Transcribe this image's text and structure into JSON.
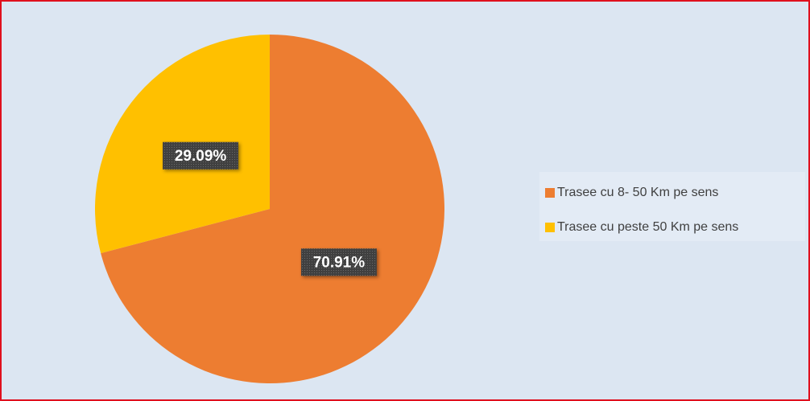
{
  "chart_data": {
    "type": "pie",
    "categories": [
      "Trasee cu 8- 50 Km pe sens",
      "Trasee cu peste 50 Km pe sens"
    ],
    "values": [
      70.91,
      29.09
    ],
    "value_labels": [
      "70.91%",
      "29.09%"
    ],
    "colors": [
      "#ED7D31",
      "#FFC000"
    ],
    "legend": "right"
  }
}
